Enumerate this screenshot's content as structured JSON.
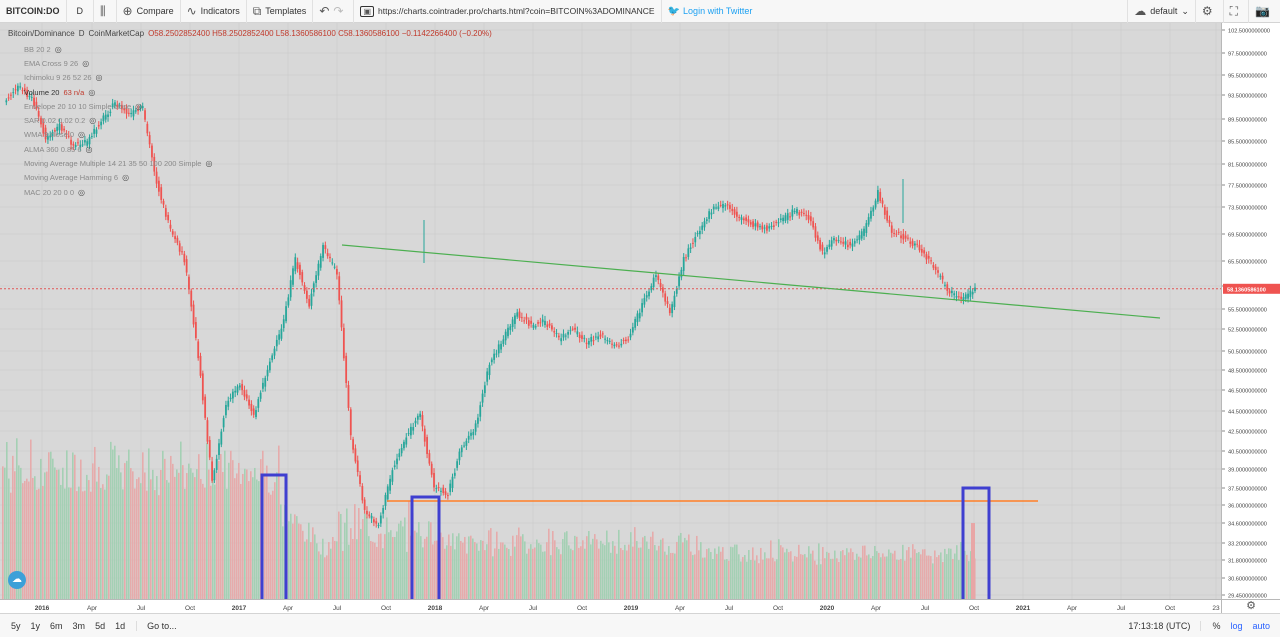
{
  "toolbar": {
    "symbol": "BITCOIN:DO",
    "interval": "D",
    "compare_label": "Compare",
    "indicators_label": "Indicators",
    "templates_label": "Templates",
    "url": "https://charts.cointrader.pro/charts.html?coin=BITCOIN%3ADOMINANCE",
    "twitter_label": "Login with Twitter",
    "layout_label": "default"
  },
  "legend": {
    "title": "Bitcoin/Dominance",
    "interval": "D",
    "source": "CoinMarketCap",
    "o": "O58.2502852400",
    "h": "H58.2502852400",
    "l": "L58.1360586100",
    "c": "C58.1360586100",
    "change": "−0.1142266400 (−0.20%)"
  },
  "indicators": [
    {
      "label": "BB 20 2",
      "value": ""
    },
    {
      "label": "EMA Cross 9 26",
      "value": ""
    },
    {
      "label": "Ichimoku 9 26 52 26",
      "value": ""
    },
    {
      "label": "Volume 20",
      "value": "63  n/a"
    },
    {
      "label": "Envelope 20 10 10 Simple close",
      "value": ""
    },
    {
      "label": "SAR 0.02 0.02 0.2",
      "value": ""
    },
    {
      "label": "WMA 9 close 0",
      "value": ""
    },
    {
      "label": "ALMA 360 0.85 6",
      "value": ""
    },
    {
      "label": "Moving Average Multiple 14 21 35 50 100 200 Simple",
      "value": ""
    },
    {
      "label": "Moving Average Hamming 6",
      "value": ""
    },
    {
      "label": "MAC 20 20 0 0",
      "value": ""
    }
  ],
  "chart_data": {
    "type": "candlestick",
    "title": "Bitcoin/Dominance",
    "y_ticks": [
      "102.5000000000",
      "97.5000000000",
      "95.5000000000",
      "93.5000000000",
      "89.5000000000",
      "85.5000000000",
      "81.5000000000",
      "77.5000000000",
      "73.5000000000",
      "69.5000000000",
      "65.5000000000",
      "61.5000000000",
      "55.5000000000",
      "52.5000000000",
      "50.5000000000",
      "48.5000000000",
      "46.5000000000",
      "44.5000000000",
      "42.5000000000",
      "40.5000000000",
      "39.0000000000",
      "37.5000000000",
      "36.0000000000",
      "34.6000000000",
      "33.2000000000",
      "31.8000000000",
      "30.6000000000",
      "29.4500000000"
    ],
    "x_ticks": [
      "2016",
      "Apr",
      "Jul",
      "Oct",
      "2017",
      "Apr",
      "Jul",
      "Oct",
      "2018",
      "Apr",
      "Jul",
      "Oct",
      "2019",
      "Apr",
      "Jul",
      "Oct",
      "2020",
      "Apr",
      "Jul",
      "Oct",
      "2021",
      "Apr",
      "Jul",
      "Oct",
      "23"
    ],
    "last_price_label": "58.1360586100",
    "price_series": [
      {
        "t": 0,
        "v": 88.5
      },
      {
        "t": 1,
        "v": 91
      },
      {
        "t": 2,
        "v": 89
      },
      {
        "t": 3,
        "v": 82
      },
      {
        "t": 4,
        "v": 84
      },
      {
        "t": 5,
        "v": 80.5
      },
      {
        "t": 6,
        "v": 81
      },
      {
        "t": 7,
        "v": 85
      },
      {
        "t": 8,
        "v": 88
      },
      {
        "t": 9,
        "v": 86
      },
      {
        "t": 10,
        "v": 87
      },
      {
        "t": 11,
        "v": 74
      },
      {
        "t": 12,
        "v": 66
      },
      {
        "t": 13,
        "v": 62
      },
      {
        "t": 14,
        "v": 50
      },
      {
        "t": 15,
        "v": 38
      },
      {
        "t": 16,
        "v": 45
      },
      {
        "t": 17,
        "v": 47
      },
      {
        "t": 18,
        "v": 44
      },
      {
        "t": 19,
        "v": 48.5
      },
      {
        "t": 20,
        "v": 53
      },
      {
        "t": 21,
        "v": 62
      },
      {
        "t": 22,
        "v": 56
      },
      {
        "t": 23,
        "v": 64
      },
      {
        "t": 24,
        "v": 60
      },
      {
        "t": 25,
        "v": 42
      },
      {
        "t": 26,
        "v": 35.5
      },
      {
        "t": 27,
        "v": 34.5
      },
      {
        "t": 28,
        "v": 39
      },
      {
        "t": 29,
        "v": 42
      },
      {
        "t": 30,
        "v": 44
      },
      {
        "t": 31,
        "v": 37.5
      },
      {
        "t": 32,
        "v": 37
      },
      {
        "t": 33,
        "v": 41
      },
      {
        "t": 34,
        "v": 43
      },
      {
        "t": 35,
        "v": 49
      },
      {
        "t": 36,
        "v": 52
      },
      {
        "t": 37,
        "v": 55
      },
      {
        "t": 38,
        "v": 53.5
      },
      {
        "t": 39,
        "v": 54
      },
      {
        "t": 40,
        "v": 52
      },
      {
        "t": 41,
        "v": 53
      },
      {
        "t": 42,
        "v": 51.5
      },
      {
        "t": 43,
        "v": 52.5
      },
      {
        "t": 44,
        "v": 51
      },
      {
        "t": 45,
        "v": 52
      },
      {
        "t": 46,
        "v": 56
      },
      {
        "t": 47,
        "v": 60
      },
      {
        "t": 48,
        "v": 55
      },
      {
        "t": 49,
        "v": 62
      },
      {
        "t": 50,
        "v": 66
      },
      {
        "t": 51,
        "v": 69
      },
      {
        "t": 52,
        "v": 70
      },
      {
        "t": 53,
        "v": 68
      },
      {
        "t": 54,
        "v": 67
      },
      {
        "t": 55,
        "v": 66.5
      },
      {
        "t": 56,
        "v": 67.5
      },
      {
        "t": 57,
        "v": 69
      },
      {
        "t": 58,
        "v": 68
      },
      {
        "t": 59,
        "v": 63
      },
      {
        "t": 60,
        "v": 65
      },
      {
        "t": 61,
        "v": 64
      },
      {
        "t": 62,
        "v": 66
      },
      {
        "t": 63,
        "v": 72
      },
      {
        "t": 64,
        "v": 66
      },
      {
        "t": 65,
        "v": 65
      },
      {
        "t": 66,
        "v": 63.5
      },
      {
        "t": 67,
        "v": 61
      },
      {
        "t": 68,
        "v": 58
      },
      {
        "t": 69,
        "v": 56.5
      },
      {
        "t": 70,
        "v": 58.1
      }
    ],
    "trendlines": [
      {
        "name": "green-trendline",
        "color": "#4caf50"
      },
      {
        "name": "orange-support-line",
        "color": "#ff7f27",
        "value": 36.0
      }
    ],
    "highlight_boxes": 3,
    "grid": true
  },
  "bottombar": {
    "ranges": [
      "5y",
      "1y",
      "6m",
      "3m",
      "5d",
      "1d"
    ],
    "goto_label": "Go to...",
    "time": "17:13:18 (UTC)",
    "percent": "%",
    "log": "log",
    "auto": "auto"
  },
  "colors": {
    "up": "#26a69a",
    "down": "#ef5350",
    "accent": "#2962ff"
  }
}
